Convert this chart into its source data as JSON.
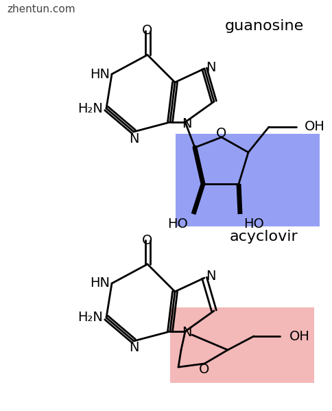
{
  "bg_color": "#ffffff",
  "watermark": "zhentun.com",
  "label_guanosine": "guanosine",
  "label_acyclovir": "acyclovir",
  "blue_color": "#5566ee",
  "red_color": "#e87878",
  "blue_alpha": 0.62,
  "red_alpha": 0.52,
  "line_width": 2.0,
  "font_size": 14
}
